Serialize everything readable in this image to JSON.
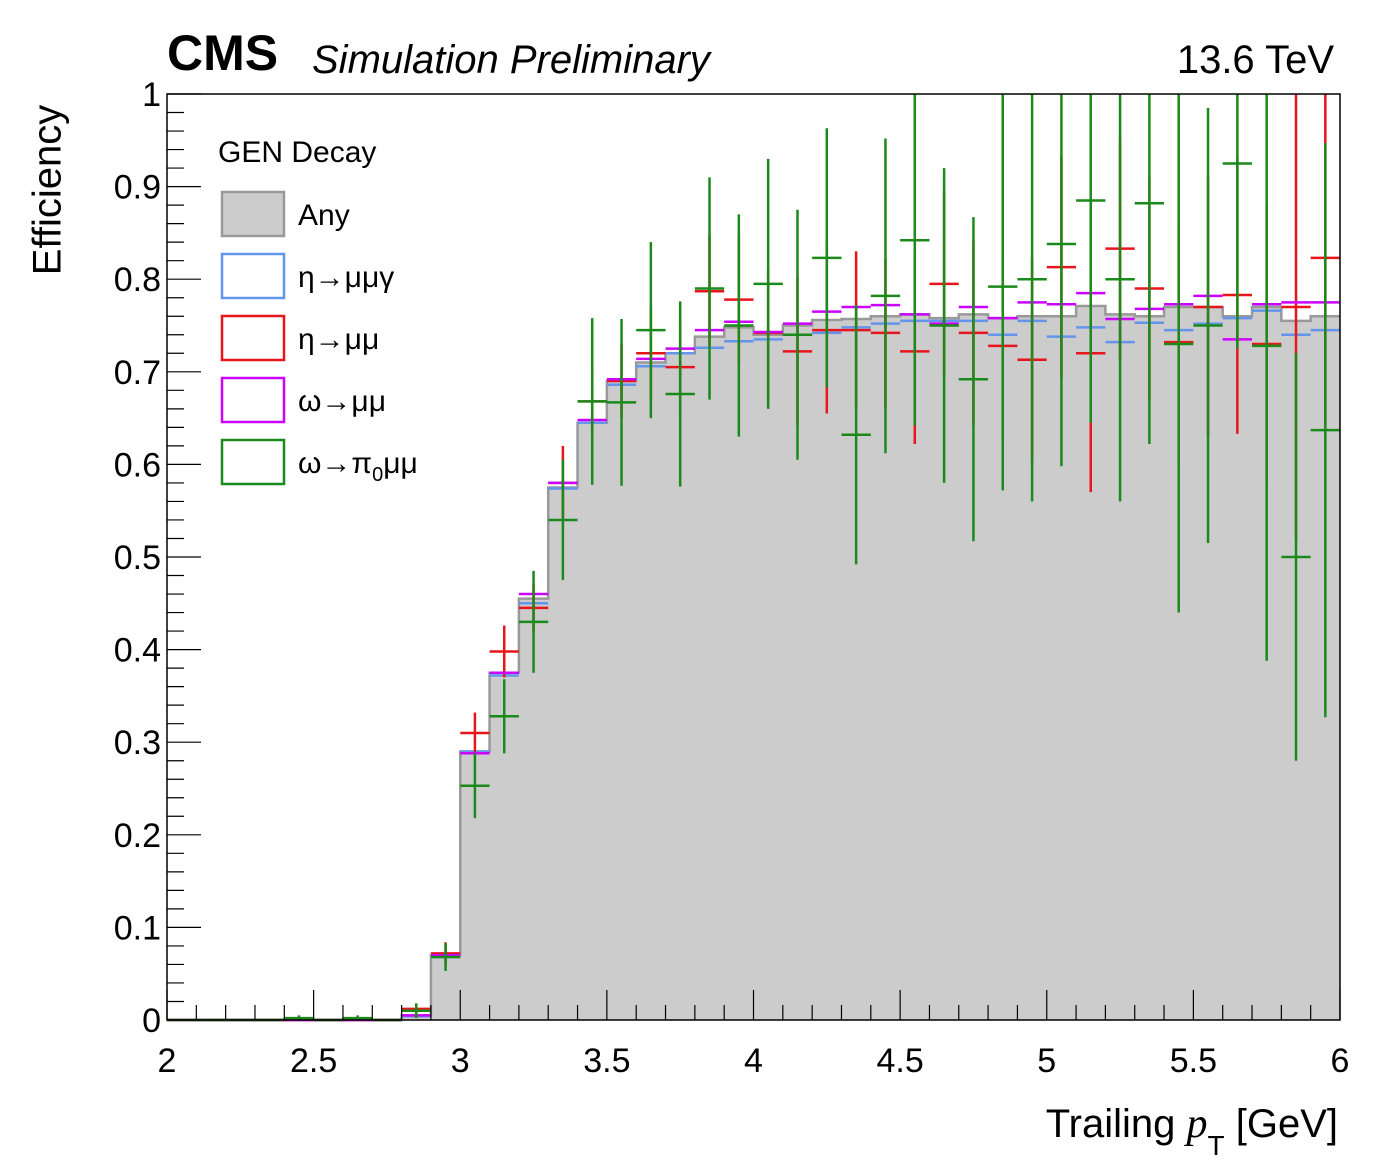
{
  "header": {
    "experiment": "CMS",
    "status": "Simulation Preliminary",
    "energy": "13.6 TeV"
  },
  "chart_data": {
    "type": "histogram",
    "ylabel": "Efficiency",
    "xlabel_prefix": "Trailing ",
    "xlabel_var": "p",
    "xlabel_sub": "T",
    "xlabel_suffix": " [GeV]",
    "xlim": [
      2,
      6
    ],
    "ylim": [
      0,
      1
    ],
    "x_ticks": [
      "2",
      "2.5",
      "3",
      "3.5",
      "4",
      "4.5",
      "5",
      "5.5",
      "6"
    ],
    "y_ticks": [
      "0",
      "0.1",
      "0.2",
      "0.3",
      "0.4",
      "0.5",
      "0.6",
      "0.7",
      "0.8",
      "0.9",
      "1"
    ],
    "bin_edges_start": 2.0,
    "bin_width": 0.1,
    "legend_title": "GEN Decay",
    "series": [
      {
        "name": "Any",
        "style": "filled",
        "color": "#999999",
        "fill": "#cccccc",
        "values": [
          0,
          0,
          0,
          0,
          0,
          0,
          0,
          0,
          0.005,
          0.07,
          0.29,
          0.375,
          0.455,
          0.575,
          0.645,
          0.69,
          0.71,
          0.72,
          0.738,
          0.748,
          0.74,
          0.75,
          0.756,
          0.757,
          0.76,
          0.762,
          0.758,
          0.762,
          0.758,
          0.76,
          0.76,
          0.771,
          0.762,
          0.76,
          0.77,
          0.77,
          0.76,
          0.77,
          0.755,
          0.76
        ]
      },
      {
        "name": "η→μμγ",
        "style": "marker",
        "color": "#6495ED",
        "values": [
          0,
          0,
          0,
          0,
          0,
          0,
          0,
          0,
          0.004,
          0.068,
          0.29,
          0.372,
          0.45,
          0.574,
          0.645,
          0.686,
          0.706,
          0.72,
          0.726,
          0.733,
          0.735,
          0.74,
          0.742,
          0.748,
          0.752,
          0.755,
          0.755,
          0.755,
          0.74,
          0.755,
          0.738,
          0.748,
          0.732,
          0.753,
          0.745,
          0.752,
          0.758,
          0.766,
          0.74,
          0.745
        ]
      },
      {
        "name": "η→μμ",
        "style": "marker",
        "color": "#e8151b",
        "values": [
          0,
          0,
          0,
          0,
          0,
          0,
          0,
          0,
          0.012,
          0.072,
          0.31,
          0.398,
          0.445,
          0.58,
          0.668,
          0.69,
          0.72,
          0.705,
          0.787,
          0.778,
          0.742,
          0.722,
          0.745,
          0.745,
          0.742,
          0.722,
          0.795,
          0.742,
          0.728,
          0.713,
          0.813,
          0.72,
          0.833,
          0.79,
          0.732,
          0.77,
          0.783,
          0.73,
          0.77,
          0.823
        ],
        "err": [
          0,
          0,
          0,
          0,
          0,
          0,
          0,
          0,
          0.005,
          0.012,
          0.022,
          0.028,
          0.025,
          0.04,
          0.04,
          0.04,
          0.05,
          0.05,
          0.06,
          0.07,
          0.07,
          0.08,
          0.09,
          0.085,
          0.08,
          0.1,
          0.1,
          0.1,
          0.1,
          0.11,
          0.12,
          0.15,
          0.12,
          0.12,
          0.13,
          0.14,
          0.15,
          0.15,
          0.25,
          0.18
        ]
      },
      {
        "name": "ω→μμ",
        "style": "marker",
        "color": "#cc00ff",
        "values": [
          0,
          0,
          0,
          0,
          0,
          0,
          0,
          0,
          0.005,
          0.07,
          0.288,
          0.375,
          0.46,
          0.58,
          0.648,
          0.692,
          0.714,
          0.725,
          0.745,
          0.754,
          0.743,
          0.752,
          0.765,
          0.77,
          0.772,
          0.762,
          0.752,
          0.77,
          0.758,
          0.775,
          0.773,
          0.785,
          0.757,
          0.768,
          0.773,
          0.782,
          0.735,
          0.773,
          0.775,
          0.775
        ]
      },
      {
        "name": "ω→π₀μμ",
        "style": "marker",
        "color": "#1a8a1a",
        "values": [
          0,
          0,
          0,
          0,
          0.002,
          0,
          0.002,
          0,
          0.01,
          0.068,
          0.253,
          0.328,
          0.43,
          0.54,
          0.668,
          0.667,
          0.745,
          0.676,
          0.79,
          0.75,
          0.795,
          0.74,
          0.823,
          0.632,
          0.782,
          0.842,
          0.75,
          0.692,
          0.792,
          0.8,
          0.838,
          0.885,
          0.8,
          0.882,
          0.73,
          0.75,
          0.925,
          0.728,
          0.5,
          0.637
        ],
        "err": [
          0,
          0,
          0,
          0,
          0.003,
          0,
          0.003,
          0,
          0.008,
          0.015,
          0.035,
          0.04,
          0.055,
          0.065,
          0.09,
          0.09,
          0.095,
          0.1,
          0.12,
          0.12,
          0.135,
          0.135,
          0.14,
          0.14,
          0.17,
          0.2,
          0.17,
          0.175,
          0.22,
          0.24,
          0.24,
          0.24,
          0.24,
          0.26,
          0.29,
          0.235,
          0.2,
          0.34,
          0.22,
          0.31
        ]
      }
    ],
    "legend_placement": "top-left",
    "grid": false
  }
}
